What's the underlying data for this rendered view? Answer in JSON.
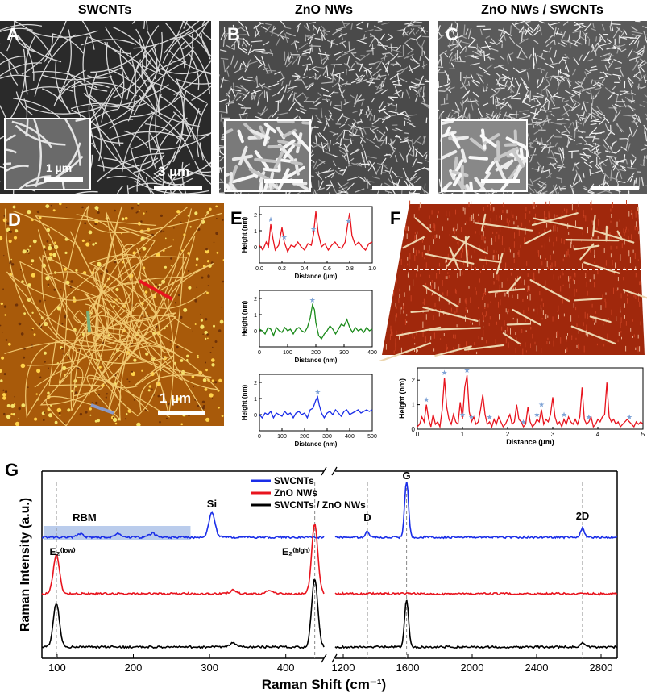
{
  "titles": {
    "a": "SWCNTs",
    "b": "ZnO NWs",
    "c": "ZnO NWs / SWCNTs"
  },
  "labels": {
    "a": "A",
    "b": "B",
    "c": "C",
    "d": "D",
    "e": "E",
    "f": "F",
    "g": "G"
  },
  "scalebars": {
    "a_main": "3 µm",
    "a_inset": "1 µm",
    "d": "1 µm"
  },
  "colors": {
    "red": "#e8141e",
    "green": "#1a8a1a",
    "blue": "#1a2ee8",
    "black": "#000000",
    "star": "#7fa3d6",
    "rbm_band": "#9db6e4",
    "afm": "#b0640f"
  },
  "chart_data": [
    {
      "type": "line",
      "panel": "E1",
      "xlabel": "Distance (μm)",
      "ylabel": "Height (nm)",
      "xlim": [
        0,
        1.0
      ],
      "ylim": [
        -1,
        2.5
      ],
      "xticks": [
        "0.0",
        "0.2",
        "0.4",
        "0.6",
        "0.8",
        "1.0"
      ],
      "yticks": [
        "0",
        "1",
        "2"
      ],
      "series": [
        {
          "color": "#e8141e",
          "x": [
            0,
            0.03,
            0.06,
            0.08,
            0.1,
            0.12,
            0.14,
            0.17,
            0.2,
            0.22,
            0.25,
            0.28,
            0.31,
            0.34,
            0.37,
            0.4,
            0.43,
            0.46,
            0.48,
            0.5,
            0.52,
            0.55,
            0.58,
            0.61,
            0.64,
            0.67,
            0.7,
            0.73,
            0.76,
            0.78,
            0.8,
            0.82,
            0.85,
            0.88,
            0.91,
            0.94,
            0.97,
            1.0
          ],
          "y": [
            0.1,
            -0.2,
            0.3,
            0,
            1.4,
            0.5,
            -0.2,
            0.1,
            1.2,
            0.3,
            -0.3,
            0.1,
            0,
            0.3,
            0,
            -0.2,
            0.2,
            0.1,
            0.8,
            2.2,
            0.9,
            0,
            0.2,
            -0.2,
            0.1,
            0.3,
            0,
            -0.1,
            0.3,
            1.3,
            2.1,
            0.7,
            0.1,
            0.3,
            0,
            -0.2,
            0.2,
            0.3
          ]
        }
      ],
      "markers_x": [
        0.1,
        0.22,
        0.48,
        0.79
      ]
    },
    {
      "type": "line",
      "panel": "E2",
      "xlabel": "Distance (nm)",
      "ylabel": "Height (nm)",
      "xlim": [
        0,
        400
      ],
      "ylim": [
        -1,
        2.5
      ],
      "xticks": [
        "0",
        "100",
        "200",
        "300",
        "400"
      ],
      "yticks": [
        "0",
        "1",
        "2"
      ],
      "series": [
        {
          "color": "#1a8a1a",
          "x": [
            0,
            10,
            20,
            30,
            40,
            50,
            60,
            70,
            80,
            90,
            100,
            110,
            120,
            130,
            140,
            150,
            160,
            170,
            180,
            188,
            195,
            200,
            210,
            220,
            230,
            240,
            250,
            260,
            270,
            280,
            290,
            300,
            310,
            320,
            330,
            340,
            350,
            360,
            370,
            380,
            390,
            400
          ],
          "y": [
            0.1,
            0,
            -0.2,
            0.2,
            0.1,
            -0.3,
            0.2,
            0,
            -0.1,
            0.2,
            0,
            0.1,
            -0.2,
            0.1,
            0.2,
            0,
            -0.1,
            0.2,
            0.8,
            1.6,
            1.3,
            0.5,
            -0.3,
            -0.5,
            -0.2,
            0,
            0.3,
            0.1,
            -0.2,
            0.1,
            0.4,
            0.3,
            0.7,
            0.2,
            -0.1,
            0.2,
            0,
            0.1,
            -0.1,
            0.2,
            0,
            0.1
          ]
        }
      ],
      "markers_x": [
        188
      ]
    },
    {
      "type": "line",
      "panel": "E3",
      "xlabel": "Distance (nm)",
      "ylabel": "Height (nm)",
      "xlim": [
        0,
        500
      ],
      "ylim": [
        -1,
        2.5
      ],
      "xticks": [
        "0",
        "100",
        "200",
        "300",
        "400",
        "500"
      ],
      "yticks": [
        "0",
        "1",
        "2"
      ],
      "series": [
        {
          "color": "#1a2ee8",
          "x": [
            0,
            12,
            25,
            37,
            50,
            62,
            75,
            87,
            100,
            112,
            125,
            137,
            150,
            162,
            175,
            187,
            200,
            212,
            225,
            237,
            250,
            258,
            265,
            275,
            287,
            300,
            312,
            325,
            337,
            350,
            362,
            375,
            387,
            400,
            412,
            425,
            437,
            450,
            462,
            475,
            487,
            500
          ],
          "y": [
            0,
            -0.2,
            0.1,
            0,
            0.2,
            -0.2,
            0.1,
            0,
            -0.1,
            0.2,
            0,
            0.1,
            -0.2,
            0.1,
            0.2,
            0,
            0.1,
            -0.2,
            0.3,
            0.4,
            0.9,
            1.1,
            0.6,
            0.1,
            -0.2,
            0.1,
            0.2,
            0,
            0.3,
            0.1,
            -0.1,
            0.2,
            0.3,
            0,
            0.1,
            0.2,
            0.3,
            0.1,
            0.2,
            0.3,
            0.2,
            0.3
          ]
        }
      ],
      "markers_x": [
        258
      ]
    },
    {
      "type": "line",
      "panel": "F",
      "xlabel": "Distance (μm)",
      "ylabel": "Height (nm)",
      "xlim": [
        0,
        5
      ],
      "ylim": [
        0,
        2.5
      ],
      "xticks": [
        "0",
        "1",
        "2",
        "3",
        "4",
        "5"
      ],
      "yticks": [
        "0",
        "1",
        "2"
      ],
      "series": [
        {
          "color": "#e8141e",
          "x": [
            0,
            0.05,
            0.1,
            0.15,
            0.2,
            0.25,
            0.3,
            0.35,
            0.4,
            0.45,
            0.5,
            0.55,
            0.6,
            0.65,
            0.7,
            0.75,
            0.8,
            0.85,
            0.9,
            0.95,
            1.0,
            1.05,
            1.1,
            1.15,
            1.2,
            1.25,
            1.3,
            1.35,
            1.4,
            1.45,
            1.5,
            1.55,
            1.6,
            1.65,
            1.7,
            1.75,
            1.8,
            1.85,
            1.9,
            1.95,
            2.0,
            2.05,
            2.1,
            2.15,
            2.2,
            2.25,
            2.3,
            2.35,
            2.4,
            2.45,
            2.5,
            2.55,
            2.6,
            2.65,
            2.7,
            2.75,
            2.8,
            2.85,
            2.9,
            2.95,
            3.0,
            3.05,
            3.1,
            3.15,
            3.2,
            3.25,
            3.3,
            3.35,
            3.4,
            3.45,
            3.5,
            3.55,
            3.6,
            3.65,
            3.7,
            3.75,
            3.8,
            3.85,
            3.9,
            3.95,
            4.0,
            4.05,
            4.1,
            4.15,
            4.2,
            4.25,
            4.3,
            4.35,
            4.4,
            4.45,
            4.5,
            4.55,
            4.6,
            4.65,
            4.7,
            4.75,
            4.8,
            4.85,
            4.9,
            4.95,
            5.0
          ],
          "y": [
            0.1,
            0.2,
            0.5,
            0.3,
            1.0,
            0.4,
            0.1,
            0.6,
            0.2,
            0.3,
            0.1,
            0.8,
            2.1,
            0.9,
            0.4,
            0.2,
            0.6,
            0.3,
            0.2,
            1.1,
            0.4,
            1.7,
            2.2,
            0.7,
            0.3,
            0.5,
            0.2,
            0.3,
            0.8,
            1.4,
            0.6,
            0.2,
            0.3,
            0.1,
            0.4,
            0.2,
            0.5,
            0.3,
            0.1,
            0.2,
            0.4,
            0.6,
            0.2,
            0.3,
            1.0,
            0.4,
            0.3,
            0.1,
            0.2,
            0.9,
            0.3,
            0.1,
            0.2,
            0.4,
            0.3,
            0.8,
            0.2,
            0.4,
            0.3,
            0.6,
            1.3,
            0.5,
            0.2,
            0.3,
            0.1,
            0.4,
            0.2,
            0.5,
            0.3,
            0.2,
            0.4,
            0.2,
            0.5,
            1.7,
            0.4,
            0.2,
            0.3,
            0.5,
            0.1,
            0.2,
            0.4,
            0.3,
            0.5,
            0.6,
            1.9,
            0.5,
            0.3,
            0.4,
            0.2,
            0.3,
            0.1,
            0.2,
            0.3,
            0.4,
            0.3,
            0.2,
            0.1,
            0.3,
            0.2,
            0.3,
            0.2
          ]
        }
      ],
      "markers_x": [
        0.2,
        0.6,
        1.0,
        1.1,
        1.2,
        1.6,
        2.35,
        2.65,
        2.75,
        3.25,
        3.8,
        4.7
      ]
    },
    {
      "type": "line",
      "panel": "G",
      "xlabel": "Raman Shift (cm⁻¹)",
      "ylabel": "Raman Intensity (a.u.)",
      "segments": [
        {
          "xlim": [
            80,
            450
          ],
          "xticks": [
            "100",
            "200",
            "300",
            "400"
          ]
        },
        {
          "xlim": [
            1150,
            2900
          ],
          "xticks": [
            "1200",
            "1600",
            "2000",
            "2400",
            "2800"
          ]
        }
      ],
      "legend": [
        "SWCNTs",
        "ZnO NWs",
        "SWCNTs / ZnO NWs"
      ],
      "annotations": [
        "RBM",
        "Si",
        "D",
        "G",
        "2D"
      ],
      "peak_lines_x": [
        99,
        438,
        1350,
        1593,
        2685
      ],
      "series": [
        {
          "name": "SWCNTs",
          "color": "#1a2ee8",
          "peaks": [
            [
              130,
              0.1
            ],
            [
              180,
              0.1
            ],
            [
              225,
              0.12
            ],
            [
              303,
              0.7
            ],
            [
              1350,
              0.15
            ],
            [
              1593,
              1.6
            ],
            [
              2685,
              0.25
            ]
          ]
        },
        {
          "name": "ZnO NWs",
          "color": "#e8141e",
          "peaks": [
            [
              99,
              1.0
            ],
            [
              331,
              0.1
            ],
            [
              378,
              0.08
            ],
            [
              438,
              1.8
            ]
          ]
        },
        {
          "name": "SWCNTs / ZnO NWs",
          "color": "#000000",
          "peaks": [
            [
              99,
              1.3
            ],
            [
              331,
              0.12
            ],
            [
              438,
              2.0
            ],
            [
              1593,
              1.4
            ],
            [
              2685,
              0.12
            ]
          ]
        }
      ]
    }
  ]
}
